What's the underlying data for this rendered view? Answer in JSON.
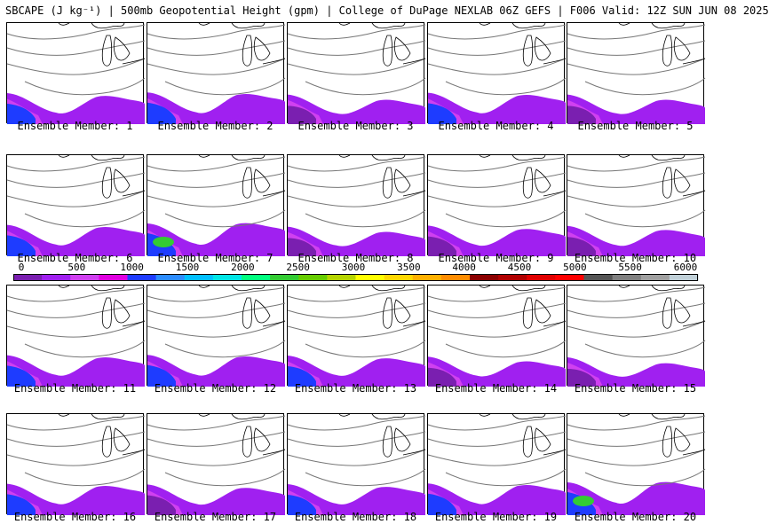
{
  "header": {
    "title": "SBCAPE (J kg⁻¹) | 500mb Geopotential Height (gpm) | College of DuPage NEXLAB 06Z GEFS | F006 Valid: 12Z SUN JUN 08 2025"
  },
  "members": [
    {
      "label": "Ensemble Member: 1",
      "intensity": 0.75
    },
    {
      "label": "Ensemble Member: 2",
      "intensity": 0.85
    },
    {
      "label": "Ensemble Member: 3",
      "intensity": 0.55
    },
    {
      "label": "Ensemble Member: 4",
      "intensity": 0.8
    },
    {
      "label": "Ensemble Member: 5",
      "intensity": 0.55
    },
    {
      "label": "Ensemble Member: 6",
      "intensity": 0.8
    },
    {
      "label": "Ensemble Member: 7",
      "intensity": 1.0
    },
    {
      "label": "Ensemble Member: 8",
      "intensity": 0.55
    },
    {
      "label": "Ensemble Member: 9",
      "intensity": 0.7
    },
    {
      "label": "Ensemble Member: 10",
      "intensity": 0.65
    },
    {
      "label": "Ensemble Member: 11",
      "intensity": 0.8
    },
    {
      "label": "Ensemble Member: 12",
      "intensity": 0.85
    },
    {
      "label": "Ensemble Member: 13",
      "intensity": 0.75
    },
    {
      "label": "Ensemble Member: 14",
      "intensity": 0.6
    },
    {
      "label": "Ensemble Member: 15",
      "intensity": 0.5
    },
    {
      "label": "Ensemble Member: 16",
      "intensity": 0.8
    },
    {
      "label": "Ensemble Member: 17",
      "intensity": 0.7
    },
    {
      "label": "Ensemble Member: 18",
      "intensity": 0.75
    },
    {
      "label": "Ensemble Member: 19",
      "intensity": 0.85
    },
    {
      "label": "Ensemble Member: 20",
      "intensity": 1.0
    }
  ],
  "legend": {
    "ticks": [
      "0",
      "500",
      "1000",
      "1500",
      "2000",
      "2500",
      "3000",
      "3500",
      "4000",
      "4500",
      "5000",
      "5500",
      "6000"
    ],
    "min": 0,
    "max": 6000,
    "colors": [
      "#7a1fb0",
      "#a020f0",
      "#d040f0",
      "#e000e0",
      "#1e3cff",
      "#2b8cff",
      "#00bfff",
      "#00e5e5",
      "#00ff7f",
      "#33cc33",
      "#66cc00",
      "#b5d400",
      "#ffff00",
      "#ffd700",
      "#ffb000",
      "#ff8c00",
      "#8b0000",
      "#b00000",
      "#e00000",
      "#ff0000",
      "#555555",
      "#808080",
      "#a0a0a0",
      "#c0d0d8"
    ]
  }
}
